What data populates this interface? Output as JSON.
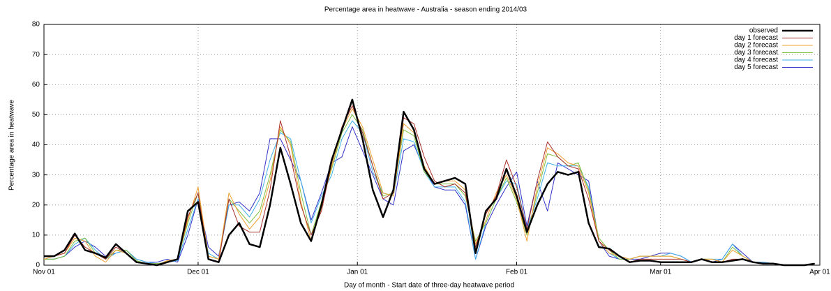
{
  "chart_data": {
    "type": "line",
    "title": "Percentage area in heatwave - Australia - season ending 2014/03",
    "x_label": "Day of month - Start date of three-day heatwave period",
    "y_label": "Percentage area in heatwave",
    "x": [
      0,
      2,
      4,
      6,
      8,
      10,
      12,
      14,
      16,
      18,
      20,
      22,
      24,
      26,
      28,
      30,
      32,
      34,
      36,
      38,
      40,
      42,
      44,
      46,
      48,
      50,
      52,
      54,
      56,
      58,
      60,
      62,
      64,
      66,
      68,
      70,
      72,
      74,
      76,
      78,
      80,
      82,
      84,
      86,
      88,
      90,
      92,
      94,
      96,
      98,
      100,
      102,
      104,
      106,
      108,
      110,
      112,
      114,
      116,
      118,
      120,
      122,
      124,
      126,
      128,
      130,
      132,
      134,
      136,
      138,
      140,
      142,
      144,
      146,
      148,
      150
    ],
    "series": [
      {
        "name": "observed",
        "color": "#000000",
        "values": [
          3,
          3,
          5,
          10.5,
          5,
          4,
          2.5,
          7,
          4,
          1,
          0.5,
          0,
          1,
          2,
          18,
          21,
          2,
          1,
          10,
          14,
          7,
          6,
          20,
          39,
          27,
          14,
          8,
          20,
          35,
          45,
          55,
          42,
          25,
          16,
          25,
          51,
          45,
          32,
          27,
          28,
          29,
          27,
          4,
          18,
          22,
          32,
          23,
          11,
          20,
          27,
          31,
          30,
          31,
          14,
          6,
          5.5,
          3,
          1,
          1.5,
          1.5,
          1,
          1,
          1,
          1,
          2,
          1,
          1,
          1.5,
          2,
          1,
          0.5,
          0.5,
          0,
          0,
          0,
          0.5
        ]
      },
      {
        "name": "day 1 forecast",
        "color": "#a8302c",
        "values": [
          3,
          3,
          4,
          10,
          6,
          4,
          2,
          6,
          4,
          1,
          0.5,
          0,
          1,
          2,
          16,
          24,
          2,
          1,
          22,
          13,
          11,
          11,
          25,
          48,
          36,
          20,
          10,
          18,
          34,
          46,
          53,
          44,
          33,
          22,
          24,
          49,
          47,
          36,
          28,
          26,
          27,
          24,
          6,
          17,
          23,
          35,
          26,
          12,
          28,
          41,
          36,
          33,
          32,
          22,
          8,
          5,
          3,
          1,
          2,
          2,
          2,
          2,
          2,
          1,
          2,
          1,
          1,
          2,
          2,
          1,
          0.5,
          0.5,
          0,
          0,
          0,
          0.5
        ]
      },
      {
        "name": "day 2 forecast",
        "color": "#f0a030",
        "values": [
          2,
          3,
          4,
          9,
          8,
          3,
          1,
          5,
          4,
          1,
          0.5,
          0,
          1.5,
          2,
          15,
          26,
          3,
          2,
          24,
          17,
          12,
          16,
          28,
          46,
          40,
          21,
          8,
          19,
          33,
          45,
          52,
          46,
          35,
          24,
          23,
          47,
          44,
          33,
          27,
          28,
          28,
          25,
          7,
          15,
          24,
          30,
          22,
          8,
          26,
          39,
          37,
          34,
          33,
          24,
          8,
          4,
          3,
          2,
          3,
          3,
          3,
          3,
          2,
          1,
          2,
          2,
          1,
          5,
          3,
          1,
          0.5,
          0.5,
          0,
          0,
          0,
          0.5
        ]
      },
      {
        "name": "day 3 forecast",
        "color": "#80c040",
        "values": [
          2,
          2,
          3,
          8,
          9,
          4,
          2,
          5,
          5,
          1.5,
          0.5,
          0.5,
          1,
          2,
          14,
          24,
          3,
          2,
          22,
          18,
          14,
          18,
          30,
          45,
          41,
          24,
          10,
          21,
          32,
          44,
          50,
          45,
          33,
          23,
          24,
          45,
          43,
          31,
          27,
          27,
          27,
          23,
          8,
          14,
          22,
          29,
          21,
          10,
          24,
          37,
          36,
          33,
          34,
          25,
          9,
          5,
          2,
          2,
          3,
          3,
          3,
          3,
          2,
          1,
          2,
          2,
          1,
          6,
          3,
          1,
          0.5,
          0.5,
          0,
          0,
          0,
          0.5
        ]
      },
      {
        "name": "day 4 forecast",
        "color": "#40b0e8",
        "values": [
          2,
          2,
          3,
          7,
          9,
          5,
          2,
          4,
          5,
          2,
          1,
          0.5,
          1,
          1.5,
          12,
          22,
          4,
          2,
          20,
          20,
          16,
          22,
          35,
          44,
          42,
          28,
          14,
          23,
          30,
          42,
          48,
          44,
          31,
          24,
          23,
          42,
          41,
          31,
          26,
          26,
          26,
          21,
          2,
          14,
          22,
          28,
          27,
          12,
          22,
          34,
          33,
          33,
          33,
          26,
          8,
          4,
          2,
          2,
          3,
          3,
          3,
          4,
          3,
          1,
          2,
          2,
          2,
          7,
          3,
          1,
          1,
          0.5,
          0,
          0,
          0,
          0.5
        ]
      },
      {
        "name": "day 5 forecast",
        "color": "#3030c8",
        "values": [
          2,
          2,
          3,
          6,
          8,
          6,
          3,
          4,
          5,
          2,
          1,
          1,
          2,
          1,
          10,
          22,
          6,
          3,
          20,
          21,
          18,
          24,
          42,
          42,
          35,
          28,
          15,
          24,
          34,
          36,
          46,
          38,
          30,
          22,
          20,
          38,
          40,
          32,
          26,
          25,
          25,
          20,
          2,
          13,
          20,
          26,
          31,
          13,
          28,
          18,
          34,
          32,
          30,
          28,
          8,
          3,
          2,
          2,
          2,
          3,
          4,
          4,
          3,
          1,
          2,
          1,
          2,
          7,
          4,
          1,
          1,
          0.5,
          0,
          0,
          0,
          0.5
        ]
      }
    ],
    "xlim": [
      0,
      151
    ],
    "xticks": [
      {
        "value": 0,
        "label": "Nov 01"
      },
      {
        "value": 30,
        "label": "Dec 01"
      },
      {
        "value": 61,
        "label": "Jan 01"
      },
      {
        "value": 92,
        "label": "Feb 01"
      },
      {
        "value": 120,
        "label": "Mar 01"
      },
      {
        "value": 151,
        "label": "Apr 01"
      }
    ],
    "ylim": [
      0,
      80
    ],
    "yticks": [
      0,
      10,
      20,
      30,
      40,
      50,
      60,
      70,
      80
    ],
    "grid": true,
    "legend": "top-right"
  }
}
